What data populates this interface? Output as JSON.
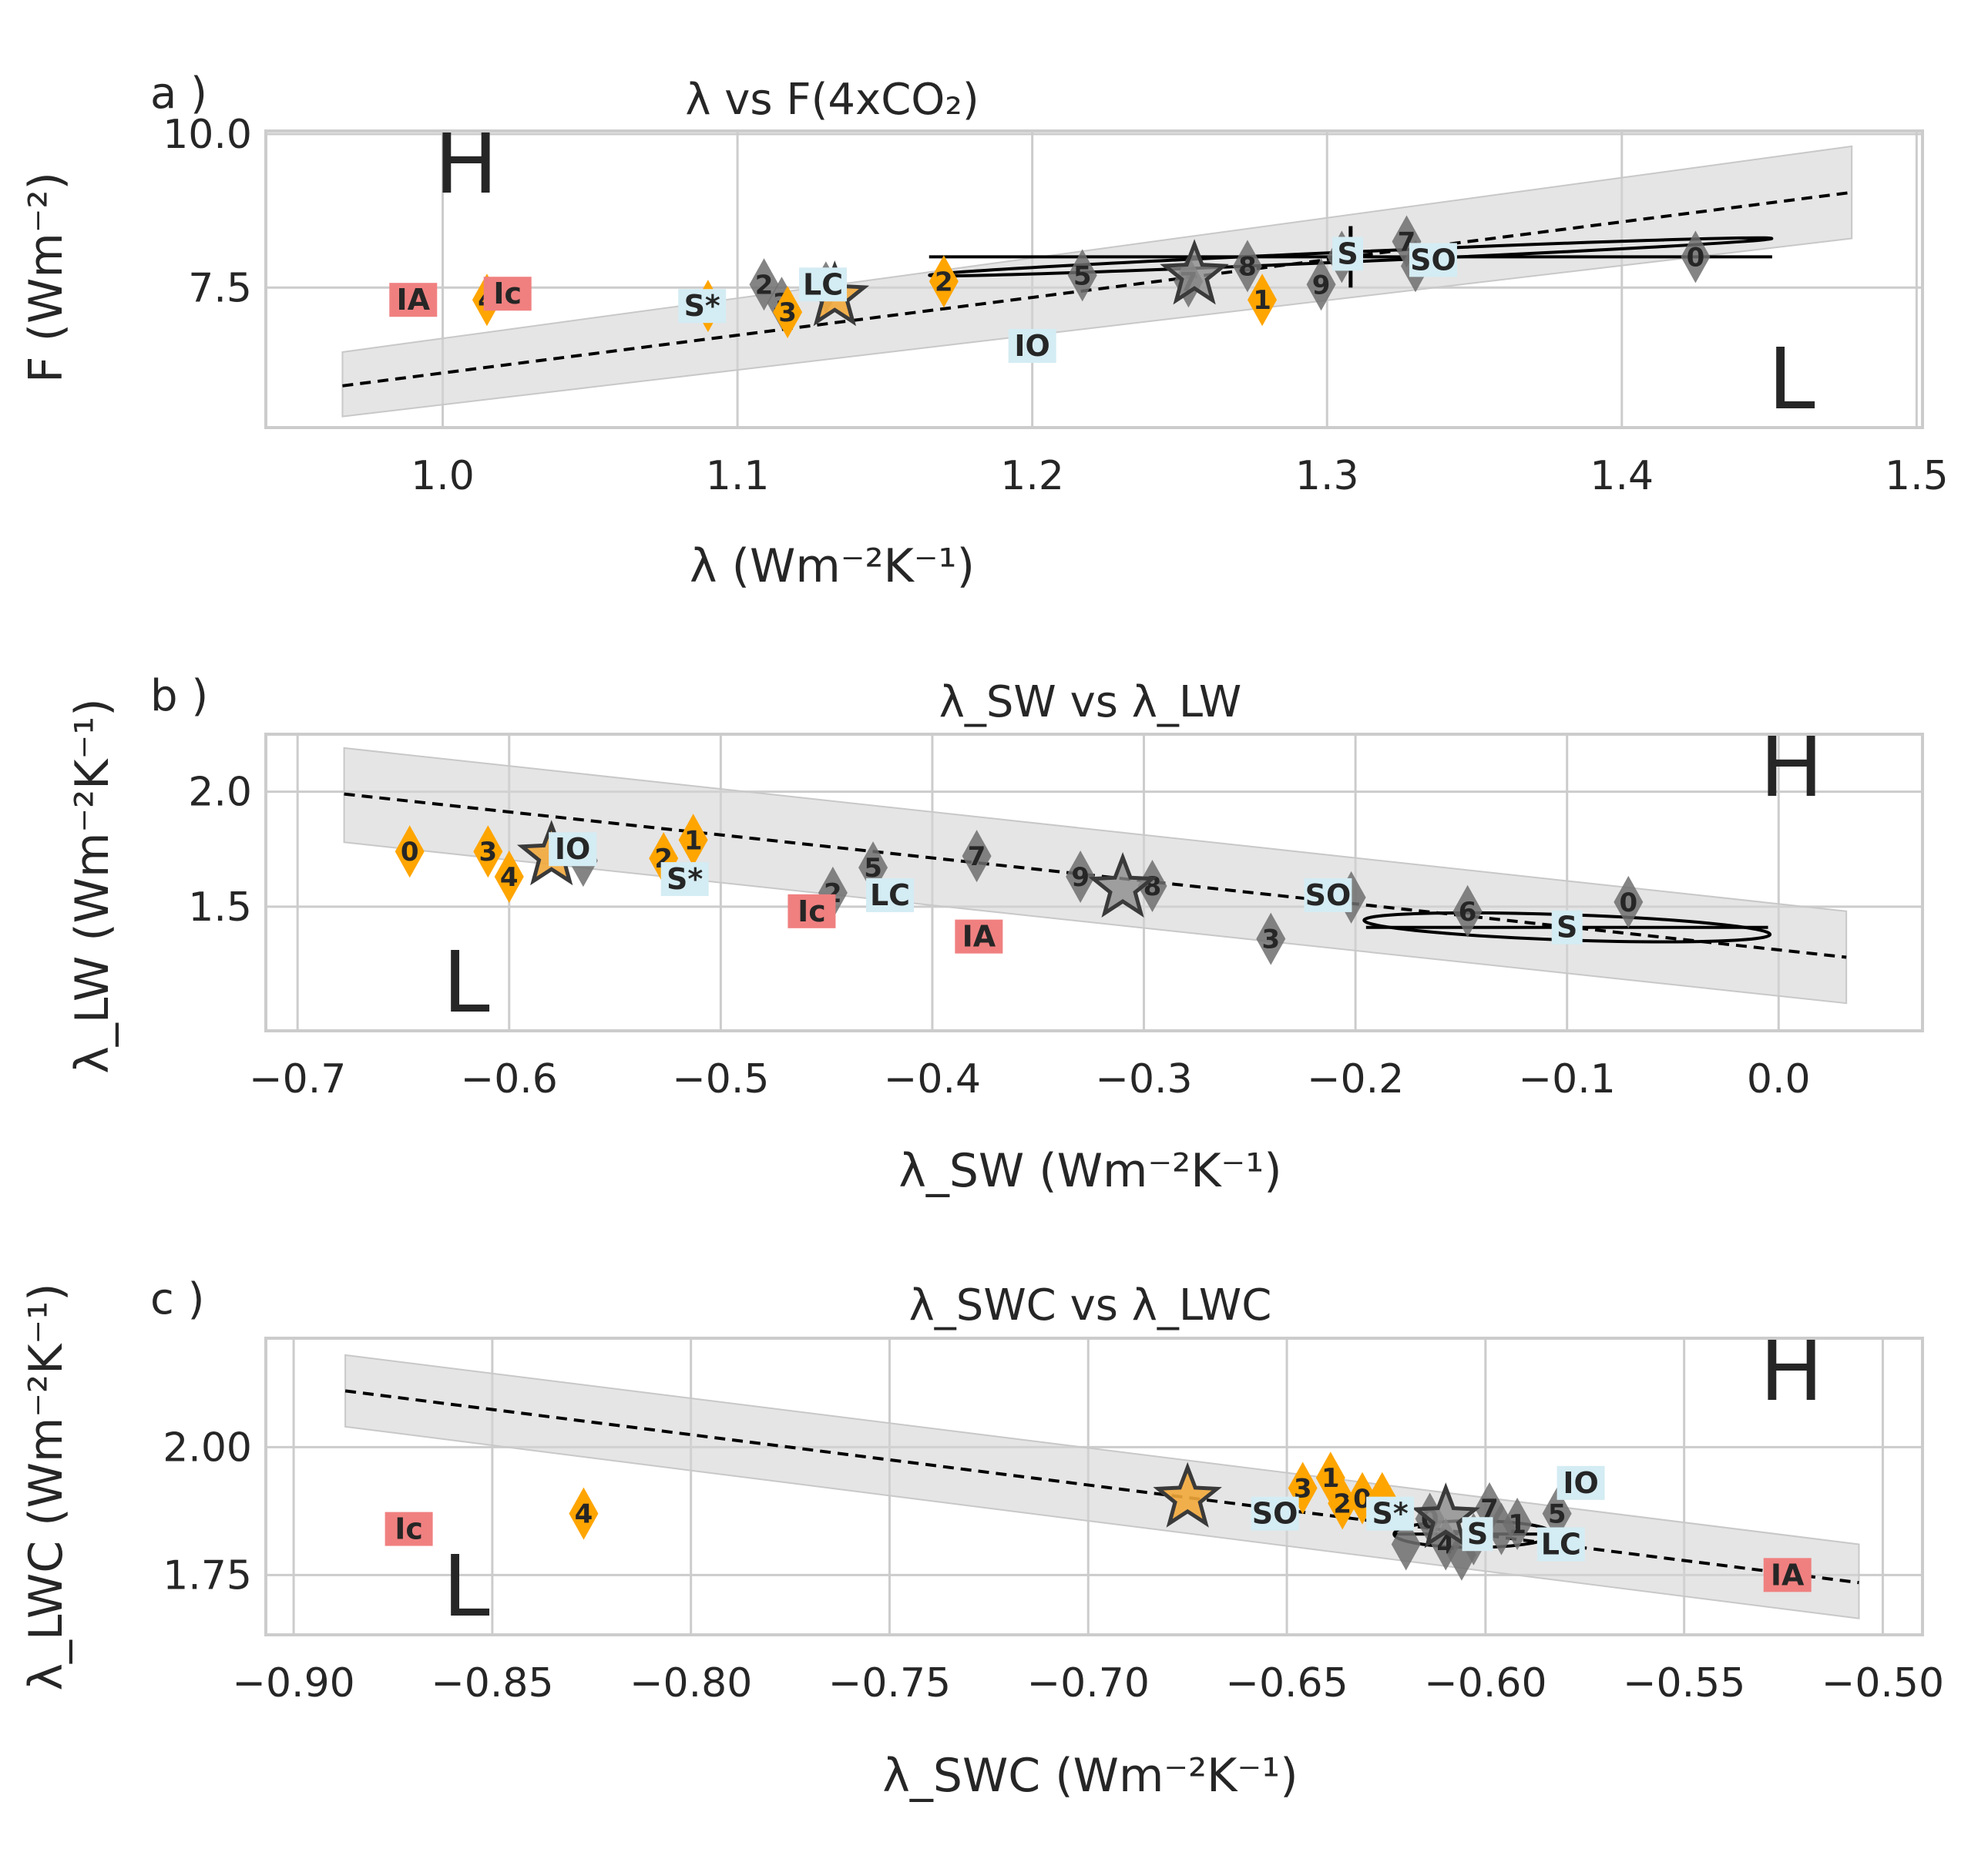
{
  "colors": {
    "orange": "#ffa500",
    "gray": "#6e6e6e",
    "red_tag": "#f08080",
    "blue_tag": "#d4ecf3",
    "band": "#d3d3d3",
    "line": "#000000",
    "grid": "#cccccc",
    "star_orange": "#f2a93b",
    "star_gray": "#8c8c8c"
  },
  "chart_data": [
    {
      "type": "scatter",
      "panel_label": "a )",
      "title": "λ vs F(4xCO₂)",
      "xlabel": "λ (Wm⁻²K⁻¹)",
      "ylabel": "F (Wm⁻²)",
      "xlim": [
        0.94,
        1.502
      ],
      "ylim": [
        5.22,
        10.05
      ],
      "xticks": [
        1.0,
        1.1,
        1.2,
        1.3,
        1.4,
        1.5
      ],
      "xtick_labels": [
        "1.0",
        "1.1",
        "1.2",
        "1.3",
        "1.4",
        "1.5"
      ],
      "yticks": [
        7.5,
        10.0
      ],
      "ytick_labels": [
        "7.5",
        "10.0"
      ],
      "corner_high": "H",
      "corner_low": "L",
      "high_corner": "top-left",
      "low_corner": "bottom-right",
      "fit_line": {
        "x": [
          0.966,
          1.478
        ],
        "y": [
          5.9,
          9.05
        ]
      },
      "band": {
        "x": [
          0.966,
          1.478
        ],
        "upper": [
          6.45,
          9.8
        ],
        "lower": [
          5.4,
          8.3
        ]
      },
      "orange_points": [
        {
          "label": "4",
          "x": 1.015,
          "y": 7.3
        },
        {
          "label": "",
          "x": 1.09,
          "y": 7.2
        },
        {
          "label": "3",
          "x": 1.117,
          "y": 7.1
        },
        {
          "label": "2",
          "x": 1.17,
          "y": 7.6
        },
        {
          "label": "1",
          "x": 1.278,
          "y": 7.3
        }
      ],
      "gray_points": [
        {
          "label": "2",
          "x": 1.109,
          "y": 7.55
        },
        {
          "label": "3",
          "x": 1.115,
          "y": 7.25
        },
        {
          "label": "",
          "x": 1.13,
          "y": 7.5
        },
        {
          "label": "5",
          "x": 1.217,
          "y": 7.7
        },
        {
          "label": "7",
          "x": 1.253,
          "y": 7.6
        },
        {
          "label": "8",
          "x": 1.273,
          "y": 7.85
        },
        {
          "label": "9",
          "x": 1.298,
          "y": 7.55
        },
        {
          "label": "",
          "x": 1.305,
          "y": 8.0
        },
        {
          "label": "7",
          "x": 1.327,
          "y": 8.25
        },
        {
          "label": "",
          "x": 1.33,
          "y": 7.85
        },
        {
          "label": "0",
          "x": 1.425,
          "y": 8.0
        }
      ],
      "star_orange": {
        "x": 1.133,
        "y": 7.35
      },
      "star_gray": {
        "x": 1.255,
        "y": 7.7
      },
      "tags_red": [
        {
          "label": "IA",
          "x": 0.99,
          "y": 7.3
        },
        {
          "label": "Ic",
          "x": 1.022,
          "y": 7.4
        }
      ],
      "tags_blue": [
        {
          "label": "S*",
          "x": 1.088,
          "y": 7.2
        },
        {
          "label": "LC",
          "x": 1.129,
          "y": 7.55
        },
        {
          "label": "IO",
          "x": 1.2,
          "y": 6.55
        },
        {
          "label": "S",
          "x": 1.307,
          "y": 8.05
        },
        {
          "label": "SO",
          "x": 1.336,
          "y": 7.95
        }
      ],
      "ellipse": {
        "cx": 1.308,
        "cy": 8.0,
        "rx": 0.143,
        "ry": 0.08,
        "angle_deg": -2.5
      },
      "crosshair": {
        "cx": 1.308,
        "cy": 8.0,
        "x_half": 0.143,
        "y_half": 0.5
      }
    },
    {
      "type": "scatter",
      "panel_label": "b )",
      "title": "λ_SW vs λ_LW",
      "xlabel": "λ_SW (Wm⁻²K⁻¹)",
      "ylabel": "λ_LW (Wm⁻²K⁻¹)",
      "xlim": [
        -0.715,
        0.068
      ],
      "ylim": [
        0.96,
        2.25
      ],
      "xticks": [
        -0.7,
        -0.6,
        -0.5,
        -0.4,
        -0.3,
        -0.2,
        -0.1,
        0.0
      ],
      "xtick_labels": [
        "−0.7",
        "−0.6",
        "−0.5",
        "−0.4",
        "−0.3",
        "−0.2",
        "−0.1",
        "0.0"
      ],
      "yticks": [
        1.5,
        2.0
      ],
      "ytick_labels": [
        "1.5",
        "2.0"
      ],
      "corner_high": "H",
      "corner_low": "L",
      "high_corner": "top-right",
      "low_corner": "bottom-left",
      "fit_line": {
        "x": [
          -0.678,
          0.032
        ],
        "y": [
          1.99,
          1.28
        ]
      },
      "band": {
        "x": [
          -0.678,
          0.032
        ],
        "upper": [
          2.19,
          1.48
        ],
        "lower": [
          1.78,
          1.08
        ]
      },
      "orange_points": [
        {
          "label": "0",
          "x": -0.647,
          "y": 1.74
        },
        {
          "label": "3",
          "x": -0.61,
          "y": 1.74
        },
        {
          "label": "4",
          "x": -0.6,
          "y": 1.63
        },
        {
          "label": "2",
          "x": -0.527,
          "y": 1.71
        },
        {
          "label": "1",
          "x": -0.513,
          "y": 1.79
        }
      ],
      "gray_points": [
        {
          "label": "",
          "x": -0.565,
          "y": 1.7
        },
        {
          "label": "2",
          "x": -0.447,
          "y": 1.56
        },
        {
          "label": "5",
          "x": -0.428,
          "y": 1.67
        },
        {
          "label": "7",
          "x": -0.379,
          "y": 1.72
        },
        {
          "label": "9",
          "x": -0.33,
          "y": 1.63
        },
        {
          "label": "8",
          "x": -0.296,
          "y": 1.59
        },
        {
          "label": "3",
          "x": -0.24,
          "y": 1.36
        },
        {
          "label": "",
          "x": -0.202,
          "y": 1.54
        },
        {
          "label": "6",
          "x": -0.147,
          "y": 1.48
        },
        {
          "label": "0",
          "x": -0.071,
          "y": 1.52
        }
      ],
      "star_orange": {
        "x": -0.58,
        "y": 1.72
      },
      "star_gray": {
        "x": -0.31,
        "y": 1.58
      },
      "tags_red": [
        {
          "label": "Ic",
          "x": -0.457,
          "y": 1.48
        },
        {
          "label": "IA",
          "x": -0.378,
          "y": 1.37
        }
      ],
      "tags_blue": [
        {
          "label": "IO",
          "x": -0.57,
          "y": 1.75
        },
        {
          "label": "S*",
          "x": -0.517,
          "y": 1.62
        },
        {
          "label": "LC",
          "x": -0.42,
          "y": 1.55
        },
        {
          "label": "SO",
          "x": -0.213,
          "y": 1.55
        },
        {
          "label": "S",
          "x": -0.1,
          "y": 1.41
        }
      ],
      "ellipse": {
        "cx": -0.1,
        "cy": 1.41,
        "rx": 0.096,
        "ry": 0.055,
        "angle_deg": 2.0
      },
      "crosshair": {
        "cx": -0.1,
        "cy": 1.41,
        "x_half": 0.095,
        "y_half": 0.03
      }
    },
    {
      "type": "scatter",
      "panel_label": "c )",
      "title": "λ_SWC vs λ_LWC",
      "xlabel": "λ_SWC (Wm⁻²K⁻¹)",
      "ylabel": "λ_LWC (Wm⁻²K⁻¹)",
      "xlim": [
        -0.907,
        -0.49
      ],
      "ylim": [
        1.633,
        2.213
      ],
      "xticks": [
        -0.9,
        -0.85,
        -0.8,
        -0.75,
        -0.7,
        -0.65,
        -0.6,
        -0.55,
        -0.5
      ],
      "xtick_labels": [
        "−0.90",
        "−0.85",
        "−0.80",
        "−0.75",
        "−0.70",
        "−0.65",
        "−0.60",
        "−0.55",
        "−0.50"
      ],
      "yticks": [
        1.75,
        2.0
      ],
      "ytick_labels": [
        "1.75",
        "2.00"
      ],
      "corner_high": "H",
      "corner_low": "L",
      "high_corner": "top-right",
      "low_corner": "bottom-left",
      "fit_line": {
        "x": [
          -0.887,
          -0.506
        ],
        "y": [
          2.11,
          1.735
        ]
      },
      "band": {
        "x": [
          -0.887,
          -0.506
        ],
        "upper": [
          2.18,
          1.81
        ],
        "lower": [
          2.04,
          1.665
        ]
      },
      "orange_points": [
        {
          "label": "4",
          "x": -0.827,
          "y": 1.87
        },
        {
          "label": "3",
          "x": -0.646,
          "y": 1.92
        },
        {
          "label": "1",
          "x": -0.639,
          "y": 1.94
        },
        {
          "label": "2",
          "x": -0.636,
          "y": 1.89
        },
        {
          "label": "0",
          "x": -0.631,
          "y": 1.9
        },
        {
          "label": "",
          "x": -0.626,
          "y": 1.9
        }
      ],
      "gray_points": [
        {
          "label": "",
          "x": -0.62,
          "y": 1.81
        },
        {
          "label": "0",
          "x": -0.614,
          "y": 1.86
        },
        {
          "label": "4",
          "x": -0.61,
          "y": 1.81
        },
        {
          "label": "7",
          "x": -0.599,
          "y": 1.88
        },
        {
          "label": "9",
          "x": -0.603,
          "y": 1.82
        },
        {
          "label": "",
          "x": -0.606,
          "y": 1.79
        },
        {
          "label": "1",
          "x": -0.592,
          "y": 1.85
        },
        {
          "label": "5",
          "x": -0.582,
          "y": 1.87
        },
        {
          "label": "",
          "x": -0.596,
          "y": 1.84
        }
      ],
      "star_orange": {
        "x": -0.675,
        "y": 1.9
      },
      "star_gray": {
        "x": -0.61,
        "y": 1.86
      },
      "tags_red": [
        {
          "label": "Ic",
          "x": -0.871,
          "y": 1.84
        },
        {
          "label": "IA",
          "x": -0.524,
          "y": 1.75
        }
      ],
      "tags_blue": [
        {
          "label": "SO",
          "x": -0.653,
          "y": 1.87
        },
        {
          "label": "S*",
          "x": -0.624,
          "y": 1.87
        },
        {
          "label": "S",
          "x": -0.602,
          "y": 1.83
        },
        {
          "label": "IO",
          "x": -0.576,
          "y": 1.93
        },
        {
          "label": "LC",
          "x": -0.581,
          "y": 1.81
        }
      ],
      "ellipse": {
        "cx": -0.603,
        "cy": 1.83,
        "rx": 0.02,
        "ry": 0.026,
        "angle_deg": 0
      },
      "crosshair": {
        "cx": -0.603,
        "cy": 1.83,
        "x_half": 0.02,
        "y_half": 0.012
      }
    }
  ]
}
